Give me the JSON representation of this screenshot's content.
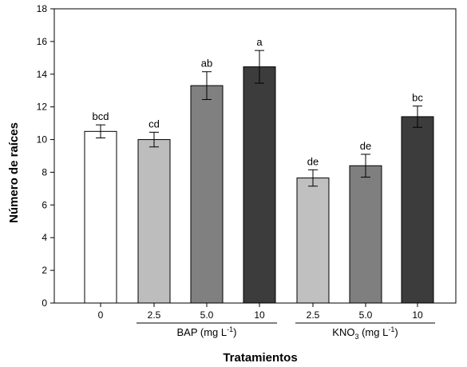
{
  "chart_data": {
    "type": "bar",
    "xlabel": "Tratamientos",
    "ylabel": "Número de raíces",
    "ylim": [
      0,
      18
    ],
    "yticks": [
      0,
      2,
      4,
      6,
      8,
      10,
      12,
      14,
      16,
      18
    ],
    "grid": false,
    "legend": "none",
    "categories": [
      "0",
      "2.5",
      "5.0",
      "10",
      "2.5",
      "5.0",
      "10"
    ],
    "values": [
      10.5,
      10.0,
      13.3,
      14.45,
      7.65,
      8.4,
      11.4
    ],
    "error": [
      0.4,
      0.45,
      0.85,
      1.0,
      0.5,
      0.7,
      0.65
    ],
    "letters": [
      "bcd",
      "cd",
      "ab",
      "a",
      "de",
      "de",
      "bc"
    ],
    "colors": [
      "#ffffff",
      "#bdbdbd",
      "#808080",
      "#3c3c3c",
      "#c0c0c0",
      "#7f7f7f",
      "#3c3c3c"
    ],
    "groups": [
      {
        "label": "BAP (mg L",
        "superscript": "-1",
        "suffix": ")",
        "start": 1,
        "end": 3
      },
      {
        "label": "KNO",
        "subscript": "3",
        "label2": " (mg L",
        "superscript": "-1",
        "suffix": ")",
        "start": 4,
        "end": 6
      }
    ]
  }
}
